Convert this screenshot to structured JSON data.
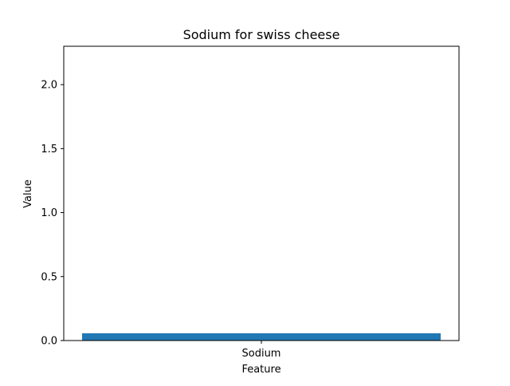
{
  "chart_data": {
    "type": "bar",
    "title": "Sodium for swiss cheese",
    "xlabel": "Feature",
    "ylabel": "Value",
    "categories": [
      "Sodium"
    ],
    "values": [
      0.057
    ],
    "ylim": [
      0,
      2.3
    ],
    "yticks": [
      0.0,
      0.5,
      1.0,
      1.5,
      2.0
    ],
    "ytick_labels": [
      "0.0",
      "0.5",
      "1.0",
      "1.5",
      "2.0"
    ],
    "grid": false,
    "legend": "none",
    "bar_color": "#1f77b4"
  }
}
